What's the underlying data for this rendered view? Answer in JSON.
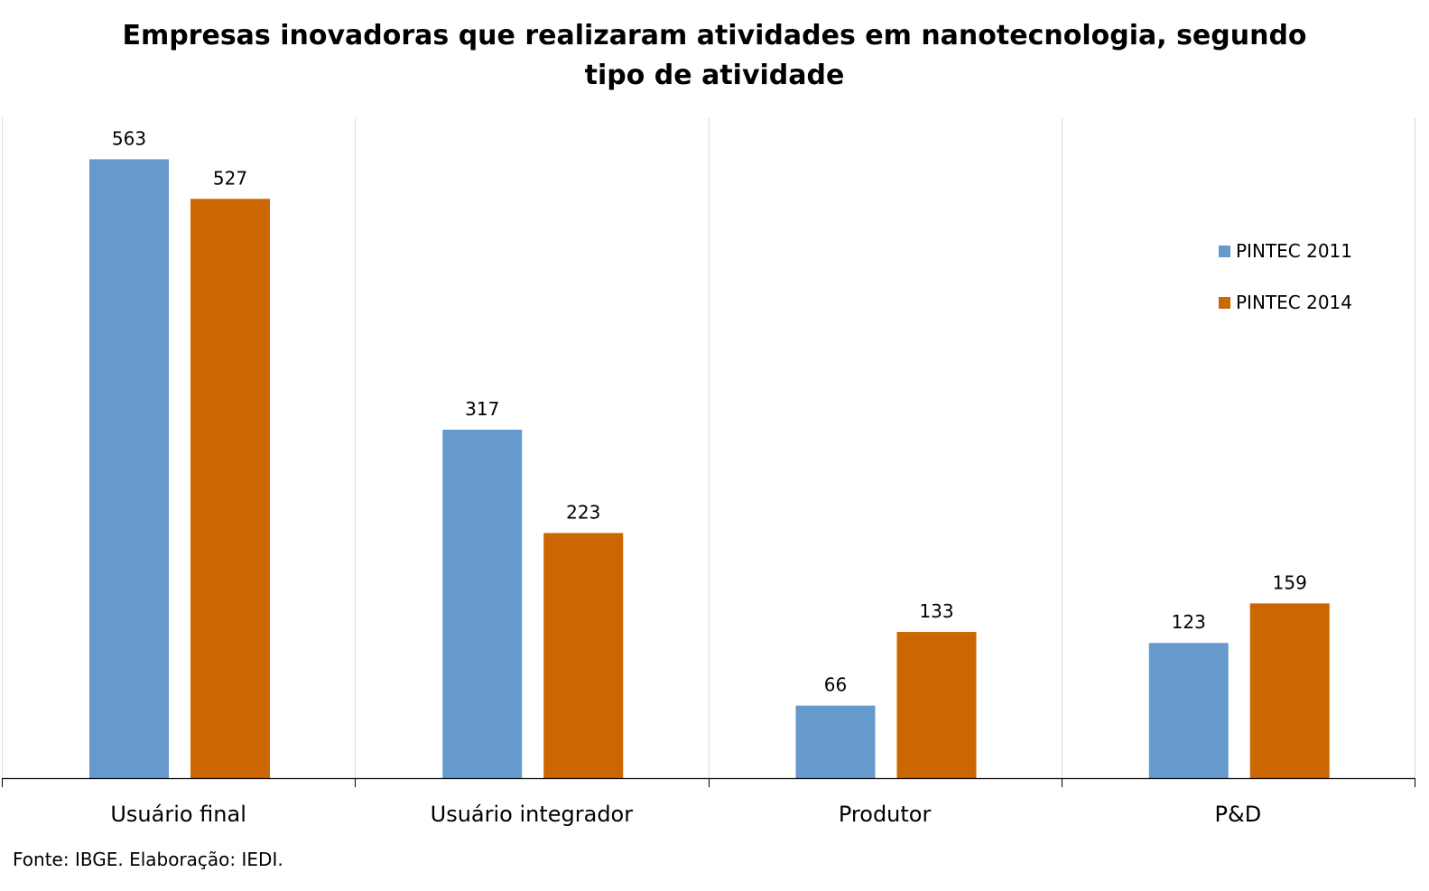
{
  "title_lines": [
    "Empresas inovadoras que realizaram atividades em nanotecnologia, segundo",
    "tipo de atividade"
  ],
  "source": "Fonte: IBGE. Elaboração: IEDI.",
  "chart_data": {
    "type": "bar",
    "title": "Empresas inovadoras que realizaram atividades em nanotecnologia, segundo tipo de atividade",
    "categories": [
      "Usuário final",
      "Usuário integrador",
      "Produtor",
      "P&D"
    ],
    "series": [
      {
        "name": "PINTEC 2011",
        "color": "#6699CC",
        "values": [
          563,
          317,
          66,
          123
        ]
      },
      {
        "name": "PINTEC 2014",
        "color": "#CC6600",
        "values": [
          527,
          223,
          133,
          159
        ]
      }
    ],
    "xlabel": "",
    "ylabel": "",
    "ylim": [
      0,
      600
    ],
    "y_axis_visible": false,
    "grid": "vertical category separators",
    "legend": "right",
    "data_labels": true
  }
}
